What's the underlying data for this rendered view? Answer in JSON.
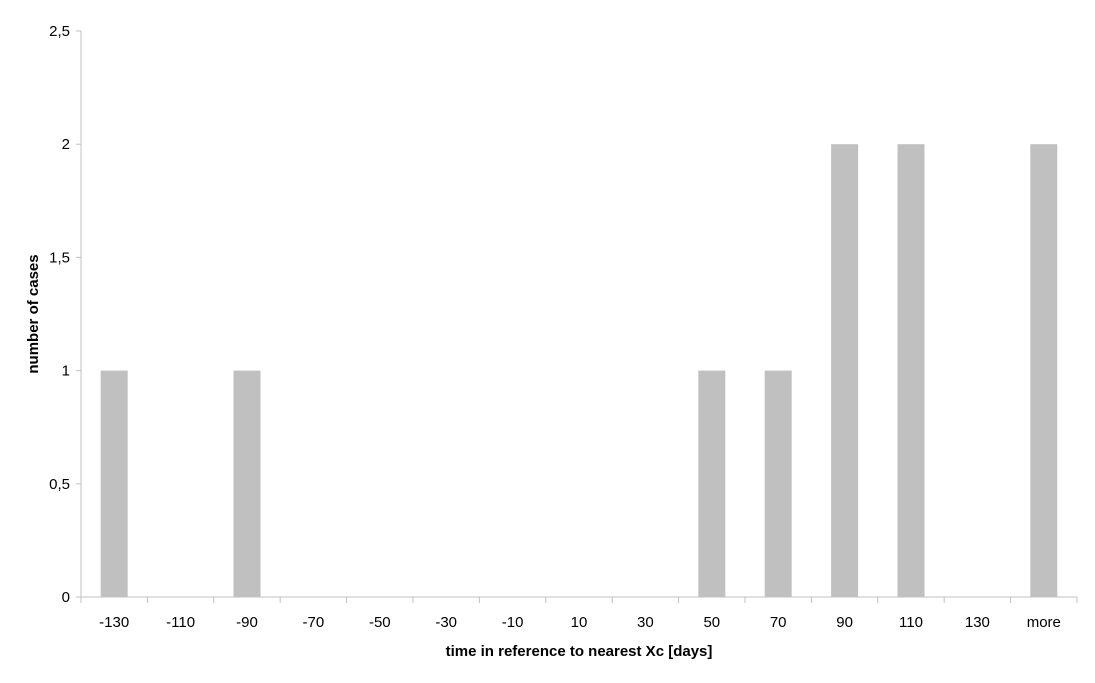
{
  "chart_data": {
    "type": "bar",
    "title": "",
    "xlabel": "time in reference to nearest Xc [days]",
    "ylabel": "number of cases",
    "categories": [
      "-130",
      "-110",
      "-90",
      "-70",
      "-50",
      "-30",
      "-10",
      "10",
      "30",
      "50",
      "70",
      "90",
      "110",
      "130",
      "more"
    ],
    "values": [
      1,
      0,
      1,
      0,
      0,
      0,
      0,
      0,
      0,
      1,
      1,
      2,
      2,
      0,
      2
    ],
    "ylim": [
      0,
      2.5
    ],
    "yticks": [
      0,
      0.5,
      1,
      1.5,
      2,
      2.5
    ],
    "ytick_labels": [
      "0",
      "0,5",
      "1",
      "1,5",
      "2",
      "2,5"
    ],
    "grid": false,
    "legend": "none",
    "bar_color": "#c0c0c0",
    "axis_color": "#c0c0c0"
  }
}
